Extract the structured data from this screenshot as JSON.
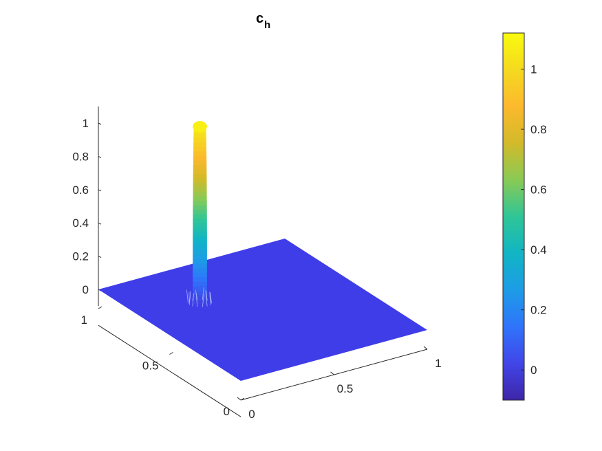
{
  "chart_data": {
    "type": "surface",
    "title": "c",
    "title_subscript": "h",
    "x_range": [
      0,
      1
    ],
    "y_range": [
      0,
      1
    ],
    "z_range": [
      -0.1,
      1.1
    ],
    "x_ticks": [
      {
        "value": 0,
        "label": "0"
      },
      {
        "value": 0.5,
        "label": "0.5"
      },
      {
        "value": 1,
        "label": "1"
      }
    ],
    "y_ticks": [
      {
        "value": 0,
        "label": "0"
      },
      {
        "value": 0.5,
        "label": "0.5"
      },
      {
        "value": 1,
        "label": "1"
      }
    ],
    "z_ticks": [
      {
        "value": 0,
        "label": "0"
      },
      {
        "value": 0.2,
        "label": "0.2"
      },
      {
        "value": 0.4,
        "label": "0.4"
      },
      {
        "value": 0.6,
        "label": "0.6"
      },
      {
        "value": 0.8,
        "label": "0.8"
      },
      {
        "value": 1,
        "label": "1"
      }
    ],
    "colorbar": {
      "range": [
        -0.1,
        1.12
      ],
      "ticks": [
        {
          "value": 0,
          "label": "0"
        },
        {
          "value": 0.2,
          "label": "0.2"
        },
        {
          "value": 0.4,
          "label": "0.4"
        },
        {
          "value": 0.6,
          "label": "0.6"
        },
        {
          "value": 0.8,
          "label": "0.8"
        },
        {
          "value": 1,
          "label": "1"
        }
      ],
      "colormap": [
        "#3e26a8",
        "#4145e8",
        "#2f74fb",
        "#1d9ce6",
        "#11b5c4",
        "#2fc597",
        "#89ca55",
        "#d2ba2a",
        "#fcb92c",
        "#f5d91f",
        "#f9fb0e"
      ]
    },
    "surface": {
      "base_value": 0,
      "peak_value": 1.08,
      "peak_center": [
        0.3,
        0.68
      ],
      "peak_radius": 0.07,
      "base_color": "#3f3de8"
    },
    "grid": false
  }
}
